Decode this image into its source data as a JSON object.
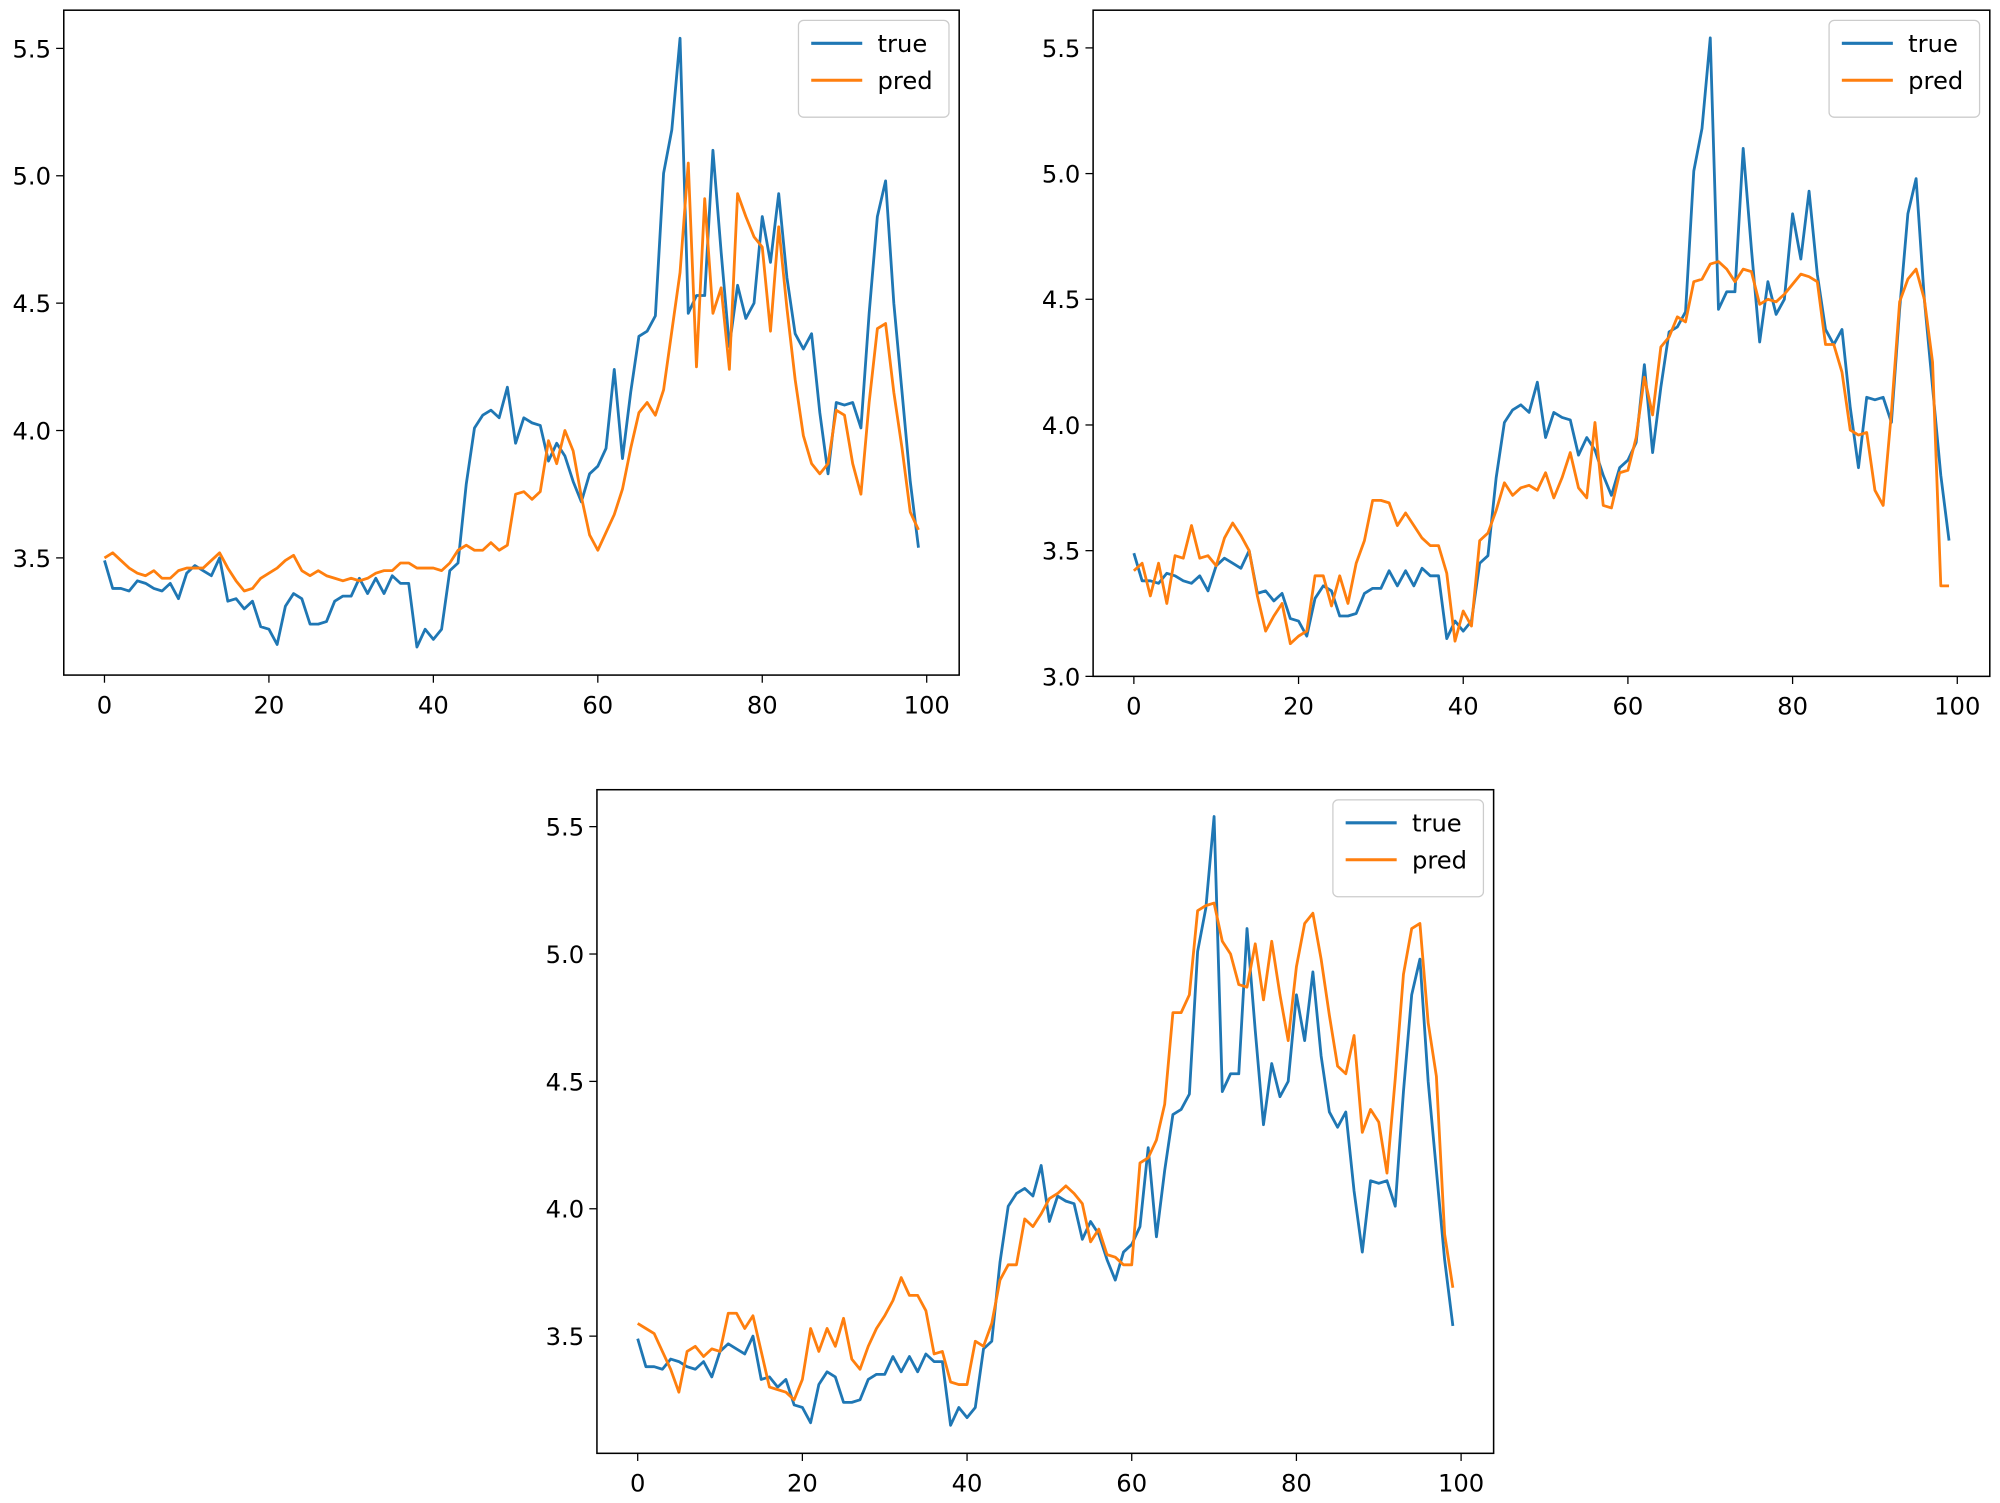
{
  "chart_data": [
    {
      "type": "line",
      "legend": "upper right",
      "x": [
        0,
        1,
        2,
        3,
        4,
        5,
        6,
        7,
        8,
        9,
        10,
        11,
        12,
        13,
        14,
        15,
        16,
        17,
        18,
        19,
        20,
        21,
        22,
        23,
        24,
        25,
        26,
        27,
        28,
        29,
        30,
        31,
        32,
        33,
        34,
        35,
        36,
        37,
        38,
        39,
        40,
        41,
        42,
        43,
        44,
        45,
        46,
        47,
        48,
        49,
        50,
        51,
        52,
        53,
        54,
        55,
        56,
        57,
        58,
        59,
        60,
        61,
        62,
        63,
        64,
        65,
        66,
        67,
        68,
        69,
        70,
        71,
        72,
        73,
        74,
        75,
        76,
        77,
        78,
        79,
        80,
        81,
        82,
        83,
        84,
        85,
        86,
        87,
        88,
        89,
        90,
        91,
        92,
        93,
        94,
        95,
        96,
        97,
        98,
        99
      ],
      "xlim": [
        -4.95,
        103.95
      ],
      "xticks": [
        0,
        20,
        40,
        60,
        80,
        100
      ],
      "ylim": [
        3.04,
        5.65
      ],
      "yticks": [
        3.5,
        {
          "value": 4,
          "label": "4.0"
        },
        4.5,
        {
          "value": 5,
          "label": "5.0"
        },
        5.5
      ],
      "series": [
        {
          "name": "true",
          "color": "#1f77b4",
          "values": [
            3.49,
            3.38,
            3.38,
            3.37,
            3.41,
            3.4,
            3.38,
            3.37,
            3.4,
            3.34,
            3.44,
            3.47,
            3.45,
            3.43,
            3.5,
            3.33,
            3.34,
            3.3,
            3.33,
            3.23,
            3.22,
            3.16,
            3.31,
            3.36,
            3.34,
            3.24,
            3.24,
            3.25,
            3.33,
            3.35,
            3.35,
            3.42,
            3.36,
            3.42,
            3.36,
            3.43,
            3.4,
            3.4,
            3.15,
            3.22,
            3.18,
            3.22,
            3.45,
            3.48,
            3.79,
            4.01,
            4.06,
            4.08,
            4.05,
            4.17,
            3.95,
            4.05,
            4.03,
            4.02,
            3.88,
            3.95,
            3.9,
            3.8,
            3.72,
            3.83,
            3.86,
            3.93,
            4.24,
            3.89,
            4.15,
            4.37,
            4.39,
            4.45,
            5.01,
            5.18,
            5.54,
            4.46,
            4.53,
            4.53,
            5.1,
            4.7,
            4.33,
            4.57,
            4.44,
            4.5,
            4.84,
            4.66,
            4.93,
            4.6,
            4.38,
            4.32,
            4.38,
            4.07,
            3.83,
            4.11,
            4.1,
            4.11,
            4.01,
            4.46,
            4.84,
            4.98,
            4.5,
            4.15,
            3.8,
            3.54
          ]
        },
        {
          "name": "pred",
          "color": "#ff7f0e",
          "values": [
            3.5,
            3.52,
            3.49,
            3.46,
            3.44,
            3.43,
            3.45,
            3.42,
            3.42,
            3.45,
            3.46,
            3.46,
            3.46,
            3.49,
            3.52,
            3.46,
            3.41,
            3.37,
            3.38,
            3.42,
            3.44,
            3.46,
            3.49,
            3.51,
            3.45,
            3.43,
            3.45,
            3.43,
            3.42,
            3.41,
            3.42,
            3.41,
            3.42,
            3.44,
            3.45,
            3.45,
            3.48,
            3.48,
            3.46,
            3.46,
            3.46,
            3.45,
            3.48,
            3.53,
            3.55,
            3.53,
            3.53,
            3.56,
            3.53,
            3.55,
            3.75,
            3.76,
            3.73,
            3.76,
            3.96,
            3.87,
            4.0,
            3.92,
            3.74,
            3.59,
            3.53,
            3.6,
            3.67,
            3.77,
            3.93,
            4.07,
            4.11,
            4.06,
            4.16,
            4.39,
            4.62,
            5.05,
            4.25,
            4.91,
            4.46,
            4.56,
            4.24,
            4.93,
            4.84,
            4.76,
            4.72,
            4.39,
            4.8,
            4.48,
            4.2,
            3.98,
            3.87,
            3.83,
            3.87,
            4.08,
            4.06,
            3.87,
            3.75,
            4.11,
            4.4,
            4.42,
            4.15,
            3.93,
            3.68,
            3.61
          ]
        }
      ]
    },
    {
      "type": "line",
      "legend": "upper right",
      "x": [
        0,
        1,
        2,
        3,
        4,
        5,
        6,
        7,
        8,
        9,
        10,
        11,
        12,
        13,
        14,
        15,
        16,
        17,
        18,
        19,
        20,
        21,
        22,
        23,
        24,
        25,
        26,
        27,
        28,
        29,
        30,
        31,
        32,
        33,
        34,
        35,
        36,
        37,
        38,
        39,
        40,
        41,
        42,
        43,
        44,
        45,
        46,
        47,
        48,
        49,
        50,
        51,
        52,
        53,
        54,
        55,
        56,
        57,
        58,
        59,
        60,
        61,
        62,
        63,
        64,
        65,
        66,
        67,
        68,
        69,
        70,
        71,
        72,
        73,
        74,
        75,
        76,
        77,
        78,
        79,
        80,
        81,
        82,
        83,
        84,
        85,
        86,
        87,
        88,
        89,
        90,
        91,
        92,
        93,
        94,
        95,
        96,
        97,
        98,
        99
      ],
      "xlim": [
        -4.95,
        103.95
      ],
      "xticks": [
        0,
        20,
        40,
        60,
        80,
        100
      ],
      "ylim": [
        3.0,
        5.65
      ],
      "yticks": [
        {
          "value": 3,
          "label": "3.0"
        },
        3.5,
        {
          "value": 4,
          "label": "4.0"
        },
        4.5,
        {
          "value": 5,
          "label": "5.0"
        },
        5.5
      ],
      "series": [
        {
          "name": "true",
          "color": "#1f77b4",
          "values": [
            3.49,
            3.38,
            3.38,
            3.37,
            3.41,
            3.4,
            3.38,
            3.37,
            3.4,
            3.34,
            3.44,
            3.47,
            3.45,
            3.43,
            3.5,
            3.33,
            3.34,
            3.3,
            3.33,
            3.23,
            3.22,
            3.16,
            3.31,
            3.36,
            3.34,
            3.24,
            3.24,
            3.25,
            3.33,
            3.35,
            3.35,
            3.42,
            3.36,
            3.42,
            3.36,
            3.43,
            3.4,
            3.4,
            3.15,
            3.22,
            3.18,
            3.22,
            3.45,
            3.48,
            3.79,
            4.01,
            4.06,
            4.08,
            4.05,
            4.17,
            3.95,
            4.05,
            4.03,
            4.02,
            3.88,
            3.95,
            3.9,
            3.8,
            3.72,
            3.83,
            3.86,
            3.93,
            4.24,
            3.89,
            4.15,
            4.37,
            4.39,
            4.45,
            5.01,
            5.18,
            5.54,
            4.46,
            4.53,
            4.53,
            5.1,
            4.7,
            4.33,
            4.57,
            4.44,
            4.5,
            4.84,
            4.66,
            4.93,
            4.6,
            4.38,
            4.32,
            4.38,
            4.07,
            3.83,
            4.11,
            4.1,
            4.11,
            4.01,
            4.46,
            4.84,
            4.98,
            4.5,
            4.15,
            3.8,
            3.54
          ]
        },
        {
          "name": "pred",
          "color": "#ff7f0e",
          "values": [
            3.42,
            3.45,
            3.32,
            3.45,
            3.29,
            3.48,
            3.47,
            3.6,
            3.47,
            3.48,
            3.44,
            3.55,
            3.61,
            3.56,
            3.5,
            3.32,
            3.18,
            3.24,
            3.29,
            3.13,
            3.16,
            3.18,
            3.4,
            3.4,
            3.28,
            3.4,
            3.29,
            3.45,
            3.54,
            3.7,
            3.7,
            3.69,
            3.6,
            3.65,
            3.6,
            3.55,
            3.52,
            3.52,
            3.41,
            3.14,
            3.26,
            3.2,
            3.54,
            3.57,
            3.66,
            3.77,
            3.72,
            3.75,
            3.76,
            3.74,
            3.81,
            3.71,
            3.79,
            3.89,
            3.75,
            3.71,
            4.01,
            3.68,
            3.67,
            3.81,
            3.82,
            3.95,
            4.19,
            4.04,
            4.31,
            4.35,
            4.43,
            4.41,
            4.57,
            4.58,
            4.64,
            4.65,
            4.62,
            4.57,
            4.62,
            4.61,
            4.48,
            4.5,
            4.49,
            4.52,
            4.56,
            4.6,
            4.59,
            4.57,
            4.32,
            4.32,
            4.21,
            3.98,
            3.96,
            3.97,
            3.74,
            3.68,
            4.05,
            4.49,
            4.58,
            4.62,
            4.5,
            4.25,
            3.36,
            3.36
          ]
        }
      ]
    },
    {
      "type": "line",
      "legend": "upper right",
      "x": [
        0,
        1,
        2,
        3,
        4,
        5,
        6,
        7,
        8,
        9,
        10,
        11,
        12,
        13,
        14,
        15,
        16,
        17,
        18,
        19,
        20,
        21,
        22,
        23,
        24,
        25,
        26,
        27,
        28,
        29,
        30,
        31,
        32,
        33,
        34,
        35,
        36,
        37,
        38,
        39,
        40,
        41,
        42,
        43,
        44,
        45,
        46,
        47,
        48,
        49,
        50,
        51,
        52,
        53,
        54,
        55,
        56,
        57,
        58,
        59,
        60,
        61,
        62,
        63,
        64,
        65,
        66,
        67,
        68,
        69,
        70,
        71,
        72,
        73,
        74,
        75,
        76,
        77,
        78,
        79,
        80,
        81,
        82,
        83,
        84,
        85,
        86,
        87,
        88,
        89,
        90,
        91,
        92,
        93,
        94,
        95,
        96,
        97,
        98,
        99
      ],
      "xlim": [
        -4.95,
        103.95
      ],
      "xticks": [
        0,
        20,
        40,
        60,
        80,
        100
      ],
      "ylim": [
        3.04,
        5.645
      ],
      "yticks": [
        3.5,
        {
          "value": 4,
          "label": "4.0"
        },
        4.5,
        {
          "value": 5,
          "label": "5.0"
        },
        5.5
      ],
      "series": [
        {
          "name": "true",
          "color": "#1f77b4",
          "values": [
            3.49,
            3.38,
            3.38,
            3.37,
            3.41,
            3.4,
            3.38,
            3.37,
            3.4,
            3.34,
            3.44,
            3.47,
            3.45,
            3.43,
            3.5,
            3.33,
            3.34,
            3.3,
            3.33,
            3.23,
            3.22,
            3.16,
            3.31,
            3.36,
            3.34,
            3.24,
            3.24,
            3.25,
            3.33,
            3.35,
            3.35,
            3.42,
            3.36,
            3.42,
            3.36,
            3.43,
            3.4,
            3.4,
            3.15,
            3.22,
            3.18,
            3.22,
            3.45,
            3.48,
            3.79,
            4.01,
            4.06,
            4.08,
            4.05,
            4.17,
            3.95,
            4.05,
            4.03,
            4.02,
            3.88,
            3.95,
            3.9,
            3.8,
            3.72,
            3.83,
            3.86,
            3.93,
            4.24,
            3.89,
            4.15,
            4.37,
            4.39,
            4.45,
            5.01,
            5.18,
            5.54,
            4.46,
            4.53,
            4.53,
            5.1,
            4.7,
            4.33,
            4.57,
            4.44,
            4.5,
            4.84,
            4.66,
            4.93,
            4.6,
            4.38,
            4.32,
            4.38,
            4.07,
            3.83,
            4.11,
            4.1,
            4.11,
            4.01,
            4.46,
            4.84,
            4.98,
            4.5,
            4.15,
            3.8,
            3.54
          ]
        },
        {
          "name": "pred",
          "color": "#ff7f0e",
          "values": [
            3.55,
            3.53,
            3.51,
            3.44,
            3.37,
            3.28,
            3.44,
            3.46,
            3.42,
            3.45,
            3.44,
            3.59,
            3.59,
            3.53,
            3.58,
            3.44,
            3.3,
            3.29,
            3.28,
            3.25,
            3.33,
            3.53,
            3.44,
            3.53,
            3.46,
            3.57,
            3.41,
            3.37,
            3.46,
            3.53,
            3.58,
            3.64,
            3.73,
            3.66,
            3.66,
            3.6,
            3.43,
            3.44,
            3.32,
            3.31,
            3.31,
            3.48,
            3.46,
            3.55,
            3.72,
            3.78,
            3.78,
            3.96,
            3.93,
            3.98,
            4.04,
            4.06,
            4.09,
            4.06,
            4.02,
            3.87,
            3.92,
            3.82,
            3.81,
            3.78,
            3.78,
            4.18,
            4.2,
            4.27,
            4.41,
            4.77,
            4.77,
            4.84,
            5.17,
            5.19,
            5.2,
            5.05,
            5.0,
            4.88,
            4.87,
            5.04,
            4.82,
            5.05,
            4.84,
            4.66,
            4.95,
            5.12,
            5.16,
            4.98,
            4.76,
            4.56,
            4.53,
            4.68,
            4.3,
            4.39,
            4.34,
            4.14,
            4.51,
            4.92,
            5.1,
            5.12,
            4.73,
            4.52,
            3.9,
            3.69
          ]
        }
      ]
    }
  ]
}
